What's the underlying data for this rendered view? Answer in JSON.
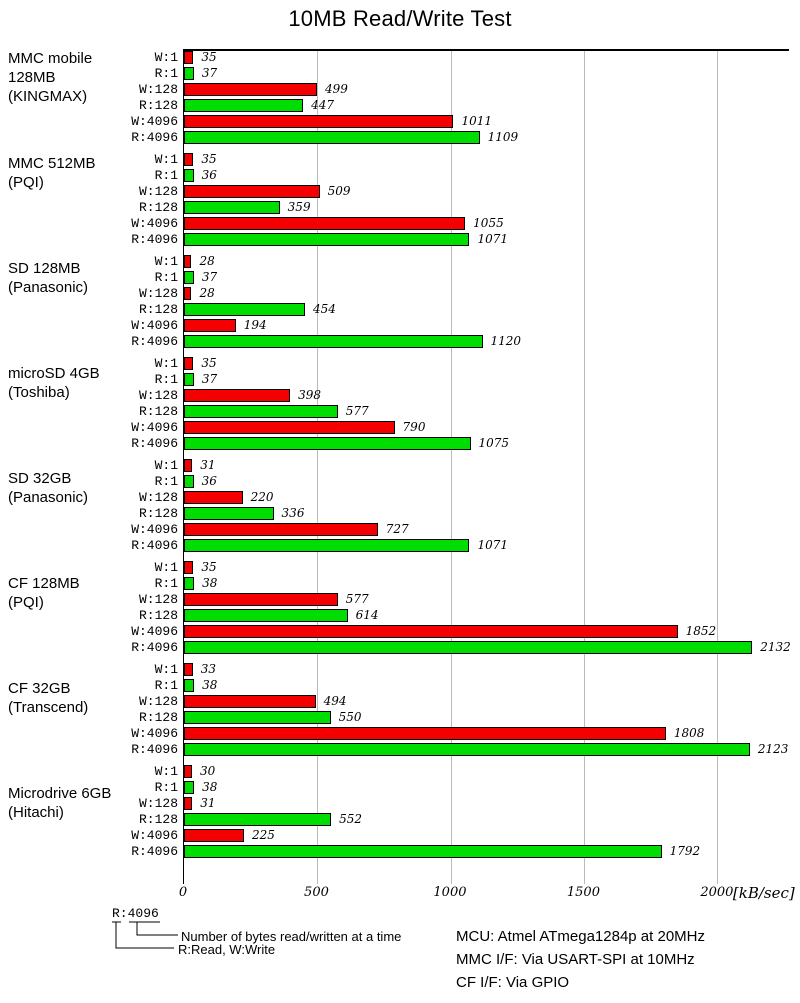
{
  "title": "10MB Read/Write Test",
  "chart_data": {
    "type": "bar",
    "orientation": "horizontal",
    "title": "10MB Read/Write Test",
    "xlabel": "[kB/sec]",
    "axis_max": 2270,
    "x_ticks": [
      0,
      500,
      1000,
      1500,
      2000
    ],
    "grid": true,
    "bar_labels": [
      "W:1",
      "R:1",
      "W:128",
      "R:128",
      "W:4096",
      "R:4096"
    ],
    "colors": {
      "write": "#f40000",
      "read": "#00dd00",
      "gridline": "#bbbbbb"
    },
    "groups": [
      {
        "name_lines": [
          "MMC mobile",
          "128MB",
          "(KINGMAX)"
        ],
        "values": [
          35,
          37,
          499,
          447,
          1011,
          1109
        ]
      },
      {
        "name_lines": [
          "MMC 512MB",
          "(PQI)"
        ],
        "values": [
          35,
          36,
          509,
          359,
          1055,
          1071
        ]
      },
      {
        "name_lines": [
          "SD 128MB",
          "(Panasonic)"
        ],
        "values": [
          28,
          37,
          28,
          454,
          194,
          1120
        ]
      },
      {
        "name_lines": [
          "microSD 4GB",
          "(Toshiba)"
        ],
        "values": [
          35,
          37,
          398,
          577,
          790,
          1075
        ]
      },
      {
        "name_lines": [
          "SD 32GB",
          "(Panasonic)"
        ],
        "values": [
          31,
          36,
          220,
          336,
          727,
          1071
        ]
      },
      {
        "name_lines": [
          "CF 128MB",
          "(PQI)"
        ],
        "values": [
          35,
          38,
          577,
          614,
          1852,
          2132
        ]
      },
      {
        "name_lines": [
          "CF 32GB",
          "(Transcend)"
        ],
        "values": [
          33,
          38,
          494,
          550,
          1808,
          2123
        ]
      },
      {
        "name_lines": [
          "Microdrive 6GB",
          "(Hitachi)"
        ],
        "values": [
          30,
          38,
          31,
          552,
          225,
          1792
        ]
      }
    ]
  },
  "legend": {
    "sample_label": "R:4096",
    "note1": "Number of bytes read/written at a time",
    "note2": "R:Read, W:Write"
  },
  "footer_notes": [
    "MCU: Atmel ATmega1284p at 20MHz",
    "MMC I/F: Via USART-SPI at 10MHz",
    "CF I/F: Via GPIO"
  ]
}
